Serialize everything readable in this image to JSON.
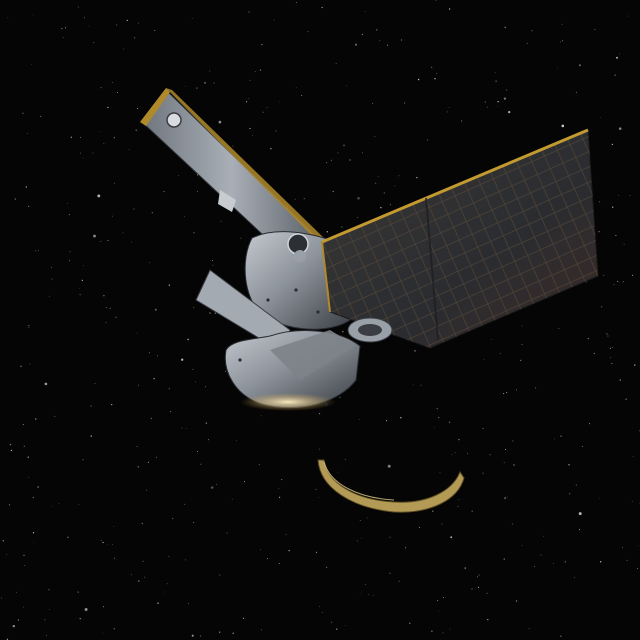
{
  "scene": {
    "subject": "spacecraft-separation",
    "background_color": "#050505",
    "star_color": "#d8d8d8",
    "panel_color": "#2a2c30",
    "panel_grid_color": "#5a4a38",
    "panel_frame_color": "#b08a2a",
    "hull_color": "#8d939b",
    "hull_shadow_color": "#3a3e44",
    "ring_color": "#b39a55"
  }
}
